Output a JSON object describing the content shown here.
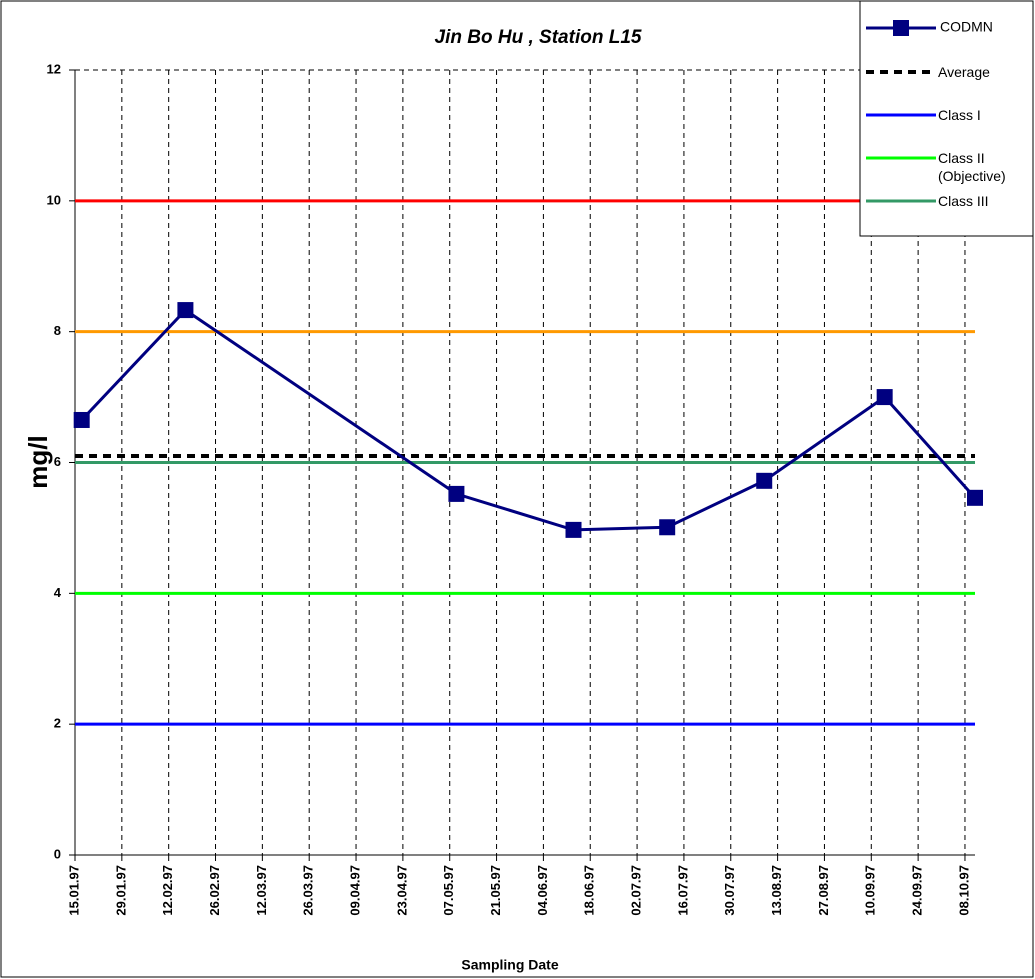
{
  "chart_data": {
    "type": "line",
    "title": "Jin Bo Hu , Station L15",
    "x_label": "Sampling Date",
    "y_label": "mg/l",
    "x": [
      "17.01.97",
      "17.02.97",
      "09.05.97",
      "13.06.97",
      "11.07.97",
      "09.08.97",
      "14.09.97",
      "11.10.97"
    ],
    "series": [
      {
        "name": "CODMN",
        "color": "#000080",
        "values": [
          6.65,
          8.33,
          5.52,
          4.97,
          5.01,
          5.72,
          7.0,
          5.46
        ]
      }
    ],
    "hlines": [
      {
        "name": "Average",
        "value": 6.1,
        "color": "#000000",
        "dash": true
      },
      {
        "name": "Class I",
        "value": 2,
        "color": "#0000ff"
      },
      {
        "name": "Class II (Objective)",
        "value": 4,
        "color": "#00ff00"
      },
      {
        "name": "Class III",
        "value": 6,
        "color": "#339966"
      },
      {
        "value": 8,
        "color": "#ff9900"
      },
      {
        "value": 10,
        "color": "#ff0000"
      }
    ],
    "xlim": [
      "15.01.97",
      "11.10.97"
    ],
    "xticks": [
      "15.01.97",
      "29.01.97",
      "12.02.97",
      "26.02.97",
      "12.03.97",
      "26.03.97",
      "09.04.97",
      "23.04.97",
      "07.05.97",
      "21.05.97",
      "04.06.97",
      "18.06.97",
      "02.07.97",
      "16.07.97",
      "30.07.97",
      "13.08.97",
      "27.08.97",
      "10.09.97",
      "24.09.97",
      "08.10.97"
    ],
    "ylim": [
      0,
      12
    ],
    "yticks": [
      0,
      2,
      4,
      6,
      8,
      10,
      12
    ],
    "grid": "x"
  }
}
